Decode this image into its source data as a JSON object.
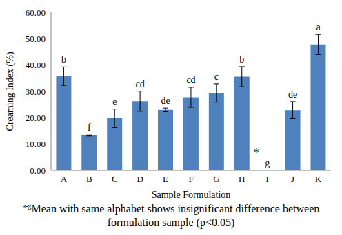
{
  "chart_data": {
    "type": "bar",
    "categories": [
      "A",
      "B",
      "C",
      "D",
      "E",
      "F",
      "G",
      "H",
      "I",
      "J",
      "K"
    ],
    "values": [
      35.8,
      13.3,
      19.8,
      26.3,
      23.0,
      27.8,
      29.4,
      35.6,
      0,
      22.9,
      47.8
    ],
    "errors": [
      3.5,
      0.2,
      3.5,
      3.8,
      0.7,
      3.8,
      3.5,
      3.8,
      0,
      3.2,
      3.8
    ],
    "group_letters": [
      "b",
      "f",
      "e",
      "cd",
      "de",
      "cd",
      "c",
      "b",
      "g",
      "de",
      "a"
    ],
    "color": "#4f81bd",
    "x_label": "Sample Formulation",
    "y_label": "Creaming Index (%)",
    "ylim": [
      0,
      60
    ],
    "yticks": [
      {
        "value": 0,
        "label": "0.00"
      },
      {
        "value": 10,
        "label": "10.00"
      },
      {
        "value": 20,
        "label": "20.00"
      },
      {
        "value": 30,
        "label": "30.00"
      },
      {
        "value": 40,
        "label": "40.00"
      },
      {
        "value": 50,
        "label": "50.00"
      },
      {
        "value": 60,
        "label": "60.00"
      }
    ],
    "grid": false,
    "annotations": [
      {
        "text": "*",
        "category": "I",
        "y": 7
      }
    ],
    "footnote": {
      "superscript": "a-g",
      "text": "Mean with same alphabet shows insignificant difference between formulation sample (p<0.05)"
    }
  }
}
